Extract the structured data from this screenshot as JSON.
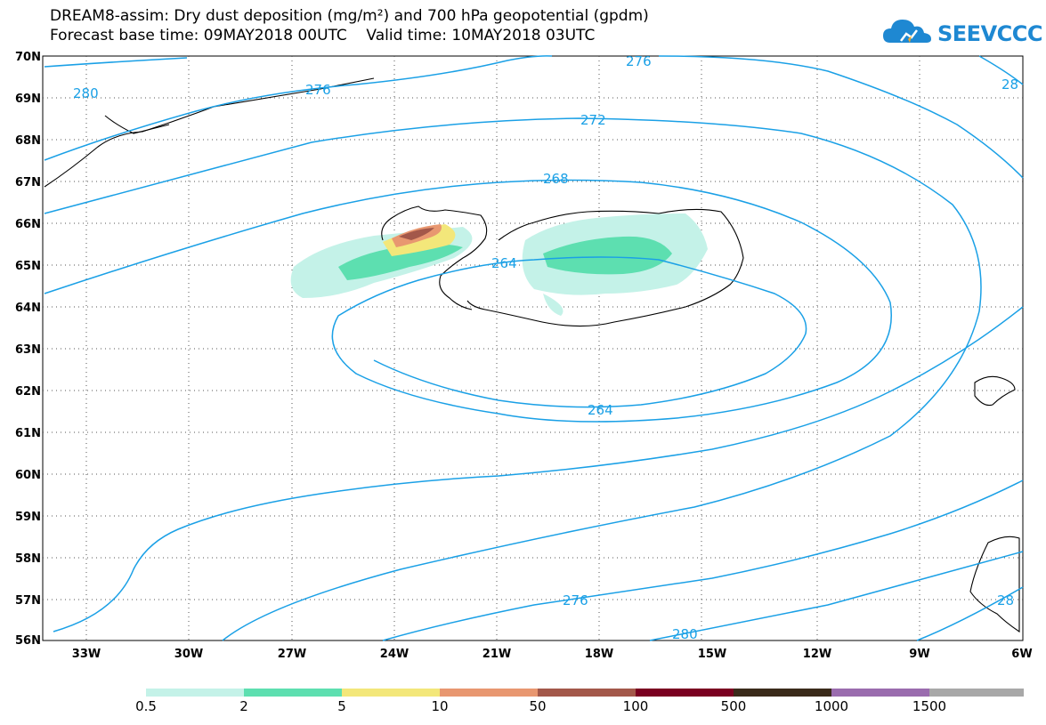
{
  "title": {
    "line1": "DREAM8-assim: Dry dust deposition (mg/m²) and 700 hPa geopotential (gpdm)",
    "line2": "Forecast base time: 09MAY2018 00UTC    Valid time: 10MAY2018 03UTC"
  },
  "logo": {
    "text": "SEEVCCC",
    "icon": "cloud-logo-icon",
    "color": "#1e88d2"
  },
  "map": {
    "region": "North Atlantic / Iceland",
    "lat_labels": [
      "70N",
      "69N",
      "68N",
      "67N",
      "66N",
      "65N",
      "64N",
      "63N",
      "62N",
      "61N",
      "60N",
      "59N",
      "58N",
      "57N",
      "56N"
    ],
    "lon_labels": [
      "33W",
      "30W",
      "27W",
      "24W",
      "21W",
      "18W",
      "15W",
      "12W",
      "9W",
      "6W"
    ],
    "contour_color": "#1aa0e6",
    "contour_labels": [
      "280",
      "276",
      "272",
      "268",
      "264",
      "264",
      "276",
      "280",
      "276",
      "28",
      "28"
    ]
  },
  "legend": {
    "colors": [
      "#c4f2e8",
      "#5ddfb0",
      "#f3e77a",
      "#e89770",
      "#a3584a",
      "#7a0020",
      "#3a2a1a",
      "#9a6cae",
      "#a8a8a8"
    ],
    "labels": [
      "0.5",
      "2",
      "5",
      "10",
      "50",
      "100",
      "500",
      "1000",
      "1500"
    ]
  }
}
